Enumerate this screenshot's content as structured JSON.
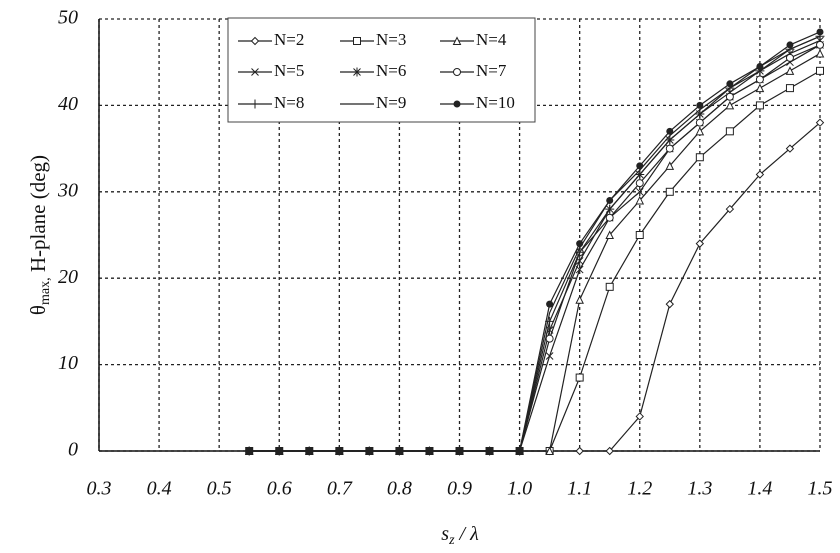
{
  "chart_data": {
    "type": "line",
    "y_label": {
      "symbol": "θ",
      "sub": "max,",
      "rest": " H-plane (deg)"
    },
    "x_label": {
      "main": "s",
      "sub": "z",
      "rest": " / λ"
    },
    "x": [
      0.55,
      0.6,
      0.65,
      0.7,
      0.75,
      0.8,
      0.85,
      0.9,
      0.95,
      1.0,
      1.05,
      1.1,
      1.15,
      1.2,
      1.25,
      1.3,
      1.35,
      1.4,
      1.45,
      1.5
    ],
    "series": [
      {
        "name": "N=2",
        "marker": "diamond",
        "color": "#222",
        "values": [
          0,
          0,
          0,
          0,
          0,
          0,
          0,
          0,
          0,
          0,
          0,
          0,
          0,
          4,
          17,
          24,
          28,
          32,
          35,
          38
        ]
      },
      {
        "name": "N=3",
        "marker": "square",
        "color": "#222",
        "values": [
          0,
          0,
          0,
          0,
          0,
          0,
          0,
          0,
          0,
          0,
          0,
          8.5,
          19,
          25,
          30,
          34,
          37,
          40,
          42,
          44
        ]
      },
      {
        "name": "N=4",
        "marker": "triangle",
        "color": "#222",
        "values": [
          0,
          0,
          0,
          0,
          0,
          0,
          0,
          0,
          0,
          0,
          0,
          17.5,
          25,
          29,
          33,
          37,
          40,
          42,
          44,
          46
        ]
      },
      {
        "name": "N=5",
        "marker": "x",
        "color": "#222",
        "values": [
          0,
          0,
          0,
          0,
          0,
          0,
          0,
          0,
          0,
          0,
          11,
          21,
          27,
          30,
          35,
          38,
          41,
          43,
          45,
          47
        ]
      },
      {
        "name": "N=6",
        "marker": "asterisk",
        "color": "#222",
        "values": [
          0,
          0,
          0,
          0,
          0,
          0,
          0,
          0,
          0,
          0,
          14,
          22,
          28,
          32,
          36,
          39,
          41.5,
          44,
          46,
          47.5
        ]
      },
      {
        "name": "N=7",
        "marker": "circle",
        "color": "#222",
        "values": [
          0,
          0,
          0,
          0,
          0,
          0,
          0,
          0,
          0,
          0,
          13,
          23,
          27,
          31,
          35,
          38,
          41,
          43,
          45.5,
          47
        ]
      },
      {
        "name": "N=8",
        "marker": "plus",
        "color": "#222",
        "values": [
          0,
          0,
          0,
          0,
          0,
          0,
          0,
          0,
          0,
          0,
          15,
          23,
          28,
          32,
          36,
          39,
          42,
          44,
          46.5,
          48
        ]
      },
      {
        "name": "N=9",
        "marker": "none",
        "color": "#222",
        "values": [
          0,
          0,
          0,
          0,
          0,
          0,
          0,
          0,
          0,
          0,
          16,
          23.5,
          29,
          32.5,
          36.5,
          39.5,
          42,
          44.5,
          46.5,
          48
        ]
      },
      {
        "name": "N=10",
        "marker": "dot",
        "color": "#222",
        "values": [
          0,
          0,
          0,
          0,
          0,
          0,
          0,
          0,
          0,
          0,
          17,
          24,
          29,
          33,
          37,
          40,
          42.5,
          44.5,
          47,
          48.5
        ]
      }
    ],
    "xlim": [
      0.3,
      1.5
    ],
    "ylim": [
      0,
      50
    ],
    "xticks": [
      0.3,
      0.4,
      0.5,
      0.6,
      0.7,
      0.8,
      0.9,
      {
        "value": 1,
        "label": "1.0"
      },
      1.1,
      1.2,
      1.3,
      1.4,
      1.5
    ],
    "yticks": [
      0,
      10,
      20,
      30,
      40,
      50
    ],
    "grid": true
  }
}
